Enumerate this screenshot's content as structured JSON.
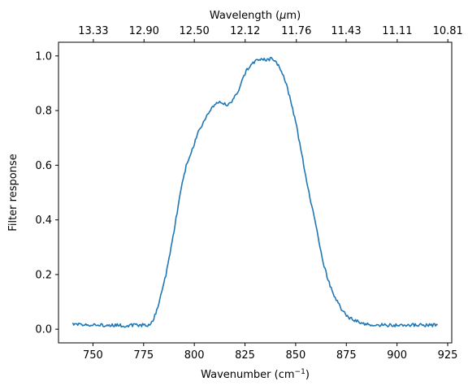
{
  "chart_data": {
    "type": "line",
    "xlabel": "Wavenumber (cm",
    "xlabel_sup": "−1",
    "xlabel_end": ")",
    "ylabel": "Filter response",
    "top_xlabel": "Wavelength (",
    "top_xlabel_mu": "μ",
    "top_xlabel_end": "m)",
    "xlim": [
      733,
      927
    ],
    "ylim": [
      -0.05,
      1.05
    ],
    "x_ticks": [
      750,
      775,
      800,
      825,
      850,
      875,
      900,
      925
    ],
    "y_ticks": [
      0.0,
      0.2,
      0.4,
      0.6,
      0.8,
      1.0
    ],
    "y_tick_labels": [
      "0.0",
      "0.2",
      "0.4",
      "0.6",
      "0.8",
      "1.0"
    ],
    "top_ticks": [
      {
        "value": 13.33,
        "label": "13.33"
      },
      {
        "value": 12.9,
        "label": "12.90"
      },
      {
        "value": 12.5,
        "label": "12.50"
      },
      {
        "value": 12.12,
        "label": "12.12"
      },
      {
        "value": 11.76,
        "label": "11.76"
      },
      {
        "value": 11.43,
        "label": "11.43"
      },
      {
        "value": 11.11,
        "label": "11.11"
      },
      {
        "value": 10.81,
        "label": "10.81"
      }
    ],
    "series": [
      {
        "color": "#1f77b4",
        "x": [
          740,
          745,
          750,
          755,
          760,
          765,
          770,
          775,
          778,
          780,
          782,
          784,
          786,
          788,
          790,
          792,
          794,
          796,
          798,
          800,
          802,
          804,
          806,
          808,
          810,
          812,
          814,
          816,
          818,
          820,
          822,
          824,
          826,
          828,
          830,
          832,
          834,
          836,
          838,
          840,
          842,
          844,
          846,
          848,
          850,
          852,
          854,
          856,
          858,
          860,
          862,
          864,
          866,
          868,
          870,
          872,
          874,
          876,
          878,
          880,
          882,
          884,
          886,
          888,
          890,
          895,
          900,
          905,
          910,
          915,
          920
        ],
        "y": [
          0.02,
          0.015,
          0.015,
          0.015,
          0.015,
          0.013,
          0.015,
          0.015,
          0.015,
          0.04,
          0.08,
          0.14,
          0.2,
          0.28,
          0.36,
          0.45,
          0.53,
          0.6,
          0.64,
          0.68,
          0.72,
          0.75,
          0.78,
          0.8,
          0.82,
          0.83,
          0.83,
          0.82,
          0.83,
          0.85,
          0.88,
          0.92,
          0.95,
          0.97,
          0.98,
          0.99,
          0.99,
          0.985,
          0.99,
          0.98,
          0.96,
          0.93,
          0.88,
          0.82,
          0.76,
          0.68,
          0.6,
          0.52,
          0.45,
          0.38,
          0.3,
          0.23,
          0.18,
          0.14,
          0.11,
          0.08,
          0.06,
          0.045,
          0.035,
          0.03,
          0.025,
          0.02,
          0.017,
          0.015,
          0.015,
          0.015,
          0.015,
          0.015,
          0.015,
          0.015,
          0.015
        ]
      }
    ]
  }
}
